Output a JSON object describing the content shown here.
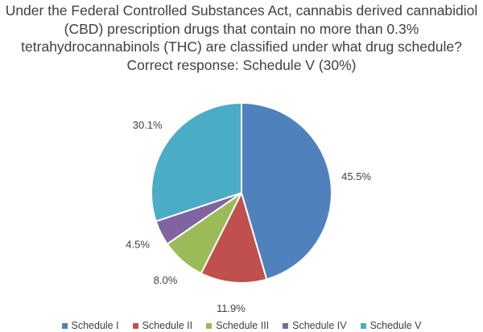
{
  "title_lines": [
    "Under the Federal Controlled Substances Act, cannabis derived cannabidiol",
    "(CBD) prescription drugs that contain no more than 0.3%",
    "tetrahydrocannabinols (THC) are classified under what drug schedule?",
    "Correct response: Schedule V (30%)"
  ],
  "chart_data": {
    "type": "pie",
    "title": "Under the Federal Controlled Substances Act, cannabis derived cannabidiol (CBD) prescription drugs that contain no more than 0.3% tetrahydrocannabinols (THC) are classified under what drug schedule? Correct response: Schedule V (30%)",
    "categories": [
      "Schedule I",
      "Schedule II",
      "Schedule III",
      "Schedule IV",
      "Schedule V"
    ],
    "values": [
      45.5,
      11.9,
      8.0,
      4.5,
      30.1
    ],
    "data_labels": [
      "45.5%",
      "11.9%",
      "8.0%",
      "4.5%",
      "30.1%"
    ],
    "colors": [
      "#4f81bd",
      "#c0504d",
      "#9bbb59",
      "#8064a2",
      "#4bacc6"
    ],
    "start": "12 o'clock",
    "direction": "clockwise",
    "legend_position": "bottom"
  }
}
